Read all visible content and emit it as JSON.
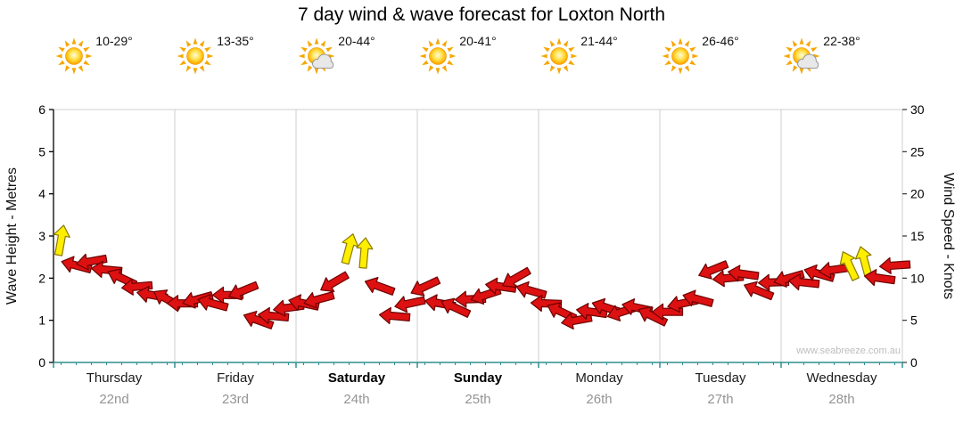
{
  "chart_data": {
    "type": "line",
    "title": "7 day wind & wave forecast for Loxton North",
    "ylabel_left": "Wave Height - Metres",
    "ylabel_right": "Wind Speed - Knots",
    "ylim_left": [
      0,
      6
    ],
    "ylim_right": [
      0,
      30
    ],
    "yticks_left": [
      0,
      1,
      2,
      3,
      4,
      5,
      6
    ],
    "yticks_right": [
      0,
      5,
      10,
      15,
      20,
      25,
      30
    ],
    "watermark": "www.seabreeze.com.au",
    "grid": "vertical-day-boundaries",
    "days": [
      {
        "name": "Thursday",
        "date": "22nd",
        "temp": "10-29°",
        "icon": "sun",
        "bold": false
      },
      {
        "name": "Friday",
        "date": "23rd",
        "temp": "13-35°",
        "icon": "sun",
        "bold": false
      },
      {
        "name": "Saturday",
        "date": "24th",
        "temp": "20-44°",
        "icon": "sun-cloud",
        "bold": true
      },
      {
        "name": "Sunday",
        "date": "25th",
        "temp": "20-41°",
        "icon": "sun",
        "bold": true
      },
      {
        "name": "Monday",
        "date": "26th",
        "temp": "21-44°",
        "icon": "sun",
        "bold": false
      },
      {
        "name": "Tuesday",
        "date": "27th",
        "temp": "26-46°",
        "icon": "sun",
        "bold": false
      },
      {
        "name": "Wednesday",
        "date": "28th",
        "temp": "22-38°",
        "icon": "sun-cloud",
        "bold": false
      }
    ],
    "wind": {
      "units": "knots",
      "points_per_day": 8,
      "knots": [
        14.5,
        11.5,
        12,
        11,
        10,
        9,
        8,
        7.5,
        7,
        7.5,
        7,
        8,
        8.5,
        5,
        5.5,
        6.5,
        7,
        7.5,
        9.5,
        13.5,
        13,
        9,
        5.5,
        7,
        9,
        7,
        6.5,
        7.5,
        8,
        9,
        10,
        8.5,
        7,
        6,
        5,
        6,
        6.5,
        6,
        6.5,
        5.5,
        6,
        7,
        7.5,
        11,
        10,
        10.5,
        8.5,
        9.5,
        10,
        9.5,
        10.5,
        11,
        11.5,
        12,
        10,
        11.5
      ],
      "dir_deg": [
        -80,
        195,
        170,
        185,
        205,
        175,
        190,
        210,
        180,
        165,
        195,
        180,
        158,
        200,
        185,
        172,
        192,
        165,
        150,
        -75,
        -85,
        200,
        185,
        168,
        155,
        190,
        205,
        178,
        162,
        188,
        150,
        196,
        182,
        205,
        170,
        188,
        198,
        162,
        192,
        206,
        180,
        168,
        195,
        158,
        175,
        188,
        202,
        178,
        164,
        186,
        196,
        172,
        -115,
        -105,
        188,
        176
      ],
      "strong_indices": [
        0,
        19,
        20,
        52,
        53
      ],
      "palette": {
        "normal_fill": "#dd1111",
        "normal_stroke": "#6b0000",
        "strong_fill": "#ffee00",
        "strong_stroke": "#8a7a00"
      }
    },
    "colors": {
      "grid": "#cfcfcf",
      "axis_left": "#000000",
      "axis_bottom": "#2f8f8f",
      "tick_label": "#000000",
      "sun_ray": "#f7a600",
      "cloud": "#e8e8e8"
    }
  }
}
